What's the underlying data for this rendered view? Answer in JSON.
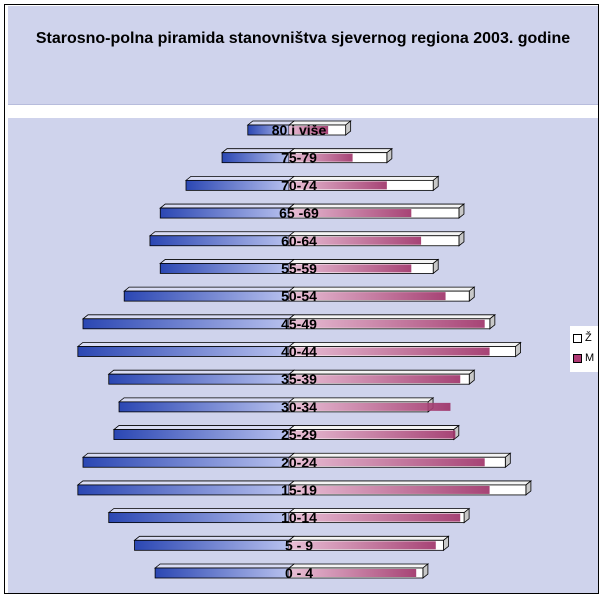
{
  "chart_data": {
    "type": "bar",
    "orientation": "horizontal",
    "title": "Starosno-polna piramida stanovništva sjevernog regiona 2003. godine",
    "categories": [
      "0 - 4",
      "5 - 9",
      "10-14",
      "15-19",
      "20-24",
      "25-29",
      "30-34",
      "35-39",
      "40-44",
      "45-49",
      "50-54",
      "55-59",
      "60-64",
      "65 -69",
      "70-74",
      "75-79",
      "80 i više"
    ],
    "series": [
      {
        "name": "Ž",
        "color": "#ffffff",
        "values": [
          2.6,
          3.0,
          3.4,
          4.6,
          4.2,
          3.2,
          2.7,
          3.5,
          4.4,
          3.9,
          3.5,
          2.8,
          3.3,
          3.3,
          2.8,
          1.9,
          1.1
        ]
      },
      {
        "name": "M",
        "color": "#b03a74",
        "values": [
          -2.6,
          -3.0,
          -3.5,
          -4.1,
          -4.0,
          -3.4,
          -3.3,
          -3.5,
          -4.1,
          -4.0,
          -3.2,
          -2.5,
          -2.7,
          -2.5,
          -2.0,
          -1.3,
          -0.8
        ]
      }
    ],
    "xlim": [
      -4.5,
      4.5
    ],
    "legend": "right",
    "grid": false
  }
}
